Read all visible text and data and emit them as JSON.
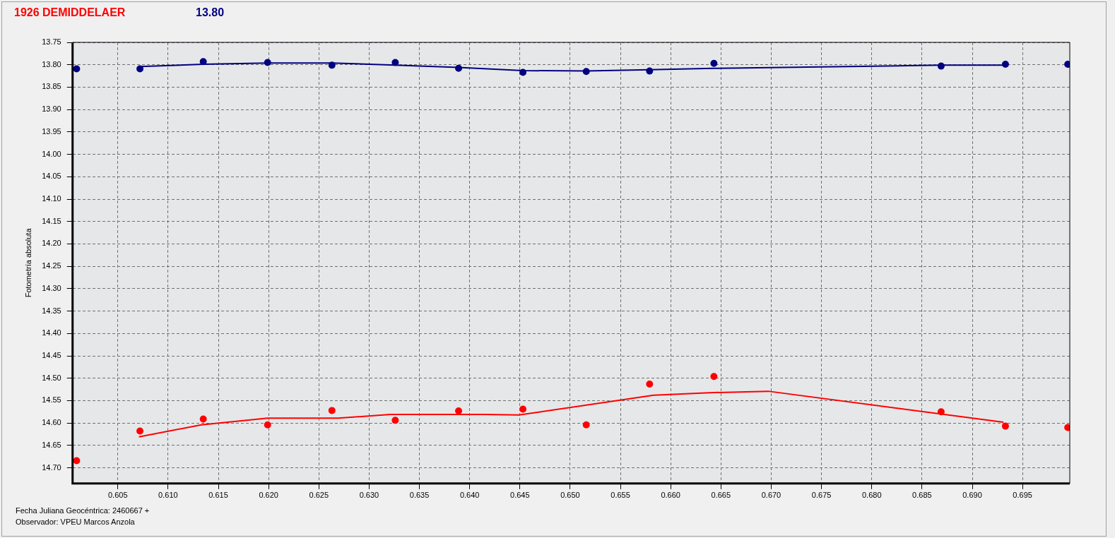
{
  "chart_data": {
    "type": "scatter",
    "title": "1926 DEMIDDELAER",
    "subtitle": "13.80",
    "ylabel": "Fotometría absoluta",
    "annotations": [
      "Fecha Juliana Geocéntrica: 2460667 +",
      "Observador: VPEU Marcos Anzola"
    ],
    "xlim": [
      0.6005,
      0.6997
    ],
    "xticks": [
      0.605,
      {
        "value": 0.61,
        "label": "0.610"
      },
      0.615,
      {
        "value": 0.62,
        "label": "0.620"
      },
      0.625,
      {
        "value": 0.63,
        "label": "0.630"
      },
      0.635,
      {
        "value": 0.64,
        "label": "0.640"
      },
      0.645,
      {
        "value": 0.65,
        "label": "0.650"
      },
      0.655,
      {
        "value": 0.66,
        "label": "0.660"
      },
      0.665,
      {
        "value": 0.67,
        "label": "0.670"
      },
      0.675,
      {
        "value": 0.68,
        "label": "0.680"
      },
      0.685,
      {
        "value": 0.69,
        "label": "0.690"
      },
      0.695
    ],
    "ylim": [
      14.735,
      13.75
    ],
    "yticks": [
      13.75,
      {
        "value": 13.8,
        "label": "13.80"
      },
      13.85,
      {
        "value": 13.9,
        "label": "13.90"
      },
      13.95,
      {
        "value": 14,
        "label": "14.00"
      },
      14.05,
      {
        "value": 14.1,
        "label": "14.10"
      },
      14.15,
      {
        "value": 14.2,
        "label": "14.20"
      },
      14.25,
      {
        "value": 14.3,
        "label": "14.30"
      },
      14.35,
      {
        "value": 14.4,
        "label": "14.40"
      },
      14.45,
      {
        "value": 14.5,
        "label": "14.50"
      },
      14.55,
      {
        "value": 14.6,
        "label": "14.60"
      },
      14.65,
      {
        "value": 14.7,
        "label": "14.70"
      }
    ],
    "grid": true,
    "line_style": "solid",
    "series": [
      {
        "marker": "circle",
        "color": "#000080",
        "x": [
          0.6009,
          0.6072,
          0.6135,
          0.6199,
          0.6263,
          0.6326,
          0.6389,
          0.6453,
          0.6516,
          0.6579,
          0.6643,
          0.6869,
          0.6933,
          0.6995
        ],
        "values": [
          13.809,
          13.809,
          13.793,
          13.795,
          13.801,
          13.795,
          13.808,
          13.817,
          13.815,
          13.814,
          13.797,
          13.803,
          13.799,
          13.799
        ]
      },
      {
        "type": "line",
        "marker": "none",
        "color": "#000080",
        "x": [
          0.6072,
          0.6135,
          0.6199,
          0.6263,
          0.6326,
          0.6389,
          0.6453,
          0.6516,
          0.6579,
          0.6643,
          0.6869,
          0.6933
        ],
        "values": [
          13.804,
          13.799,
          13.796,
          13.796,
          13.801,
          13.806,
          13.813,
          13.814,
          13.811,
          13.808,
          13.801,
          13.801
        ]
      },
      {
        "marker": "circle",
        "color": "#ff0000",
        "x": [
          0.6009,
          0.6072,
          0.6135,
          0.6199,
          0.6263,
          0.6326,
          0.6389,
          0.6453,
          0.6516,
          0.6579,
          0.6643,
          0.6869,
          0.6933,
          0.6995
        ],
        "values": [
          14.684,
          14.618,
          14.591,
          14.604,
          14.572,
          14.594,
          14.573,
          14.569,
          14.604,
          14.513,
          14.496,
          14.575,
          14.607,
          14.61
        ]
      },
      {
        "type": "line",
        "marker": "none",
        "color": "#ff0000",
        "x": [
          0.6071,
          0.6133,
          0.6199,
          0.6269,
          0.6321,
          0.6415,
          0.6449,
          0.6583,
          0.6643,
          0.6697,
          0.6931
        ],
        "values": [
          14.631,
          14.604,
          14.589,
          14.589,
          14.581,
          14.581,
          14.582,
          14.538,
          14.532,
          14.529,
          14.598
        ]
      }
    ]
  }
}
